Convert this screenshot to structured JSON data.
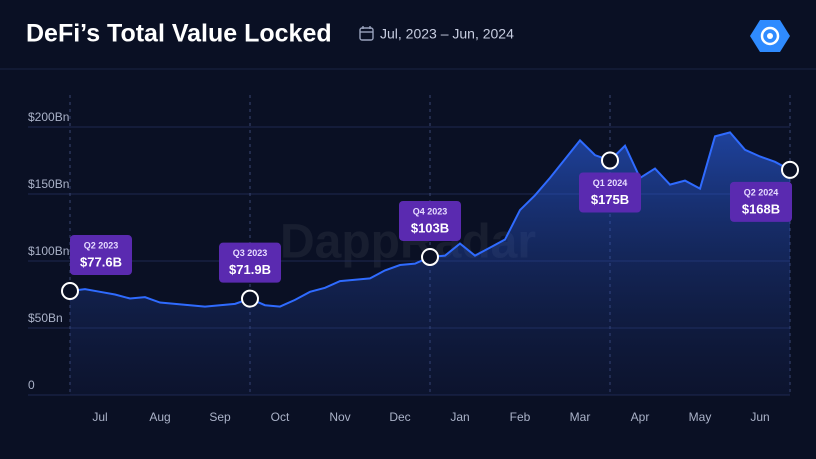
{
  "chart_data": {
    "type": "area",
    "title": "DeFi’s Total Value Locked",
    "subtitle": "Jul, 2023 – Jun, 2024",
    "watermark": "DappRadar",
    "categories": [
      null,
      null,
      "Jul",
      null,
      null,
      null,
      "Aug",
      null,
      null,
      null,
      "Sep",
      null,
      null,
      null,
      "Oct",
      null,
      null,
      null,
      "Nov",
      null,
      null,
      null,
      "Dec",
      null,
      null,
      null,
      "Jan",
      null,
      null,
      null,
      "Feb",
      null,
      null,
      null,
      "Mar",
      null,
      null,
      null,
      "Apr",
      null,
      null,
      null,
      "May",
      null,
      null,
      null,
      "Jun",
      null,
      null
    ],
    "series": [
      {
        "name": "TVL",
        "color": "#2f6bff",
        "values": [
          77.6,
          79,
          77,
          75,
          72,
          73,
          69,
          68,
          67,
          66,
          67,
          68,
          71.9,
          67,
          66,
          71,
          77,
          80,
          85,
          86,
          87,
          93,
          97,
          98,
          103,
          104,
          113,
          104,
          110,
          116,
          138,
          149,
          162,
          176,
          190,
          179,
          175,
          186,
          162,
          169,
          157,
          160,
          154,
          193,
          196,
          183,
          178,
          174,
          168
        ]
      }
    ],
    "annotations": [
      {
        "label": "Q2 2023",
        "value": 77.6,
        "value_label": "$77.6B"
      },
      {
        "label": "Q3 2023",
        "value": 71.9,
        "value_label": "$71.9B"
      },
      {
        "label": "Q4 2023",
        "value": 103,
        "value_label": "$103B"
      },
      {
        "label": "Q1 2024",
        "value": 175,
        "value_label": "$175B"
      },
      {
        "label": "Q2 2024",
        "value": 168,
        "value_label": "$168B"
      }
    ],
    "ylim": [
      0,
      200
    ],
    "yticks": [
      0,
      {
        "value": 50,
        "label": "$50Bn"
      },
      {
        "value": 100,
        "label": "$100Bn"
      },
      {
        "value": 150,
        "label": "$150Bn"
      },
      {
        "value": 200,
        "label": "$200Bn"
      }
    ],
    "grid": true
  }
}
